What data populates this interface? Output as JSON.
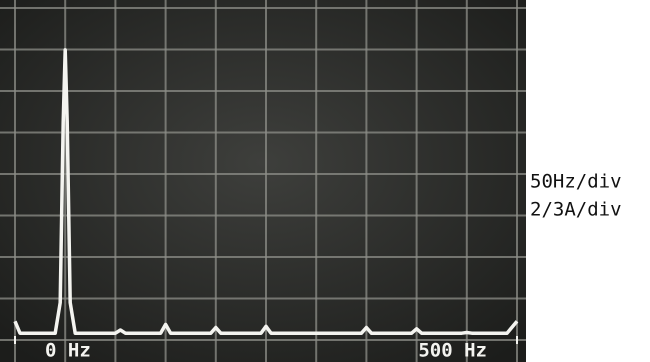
{
  "chart_data": {
    "type": "line",
    "x": [
      0,
      5,
      40,
      45,
      48,
      50,
      52,
      55,
      60,
      100,
      105,
      110,
      145,
      150,
      155,
      195,
      200,
      205,
      245,
      250,
      255,
      345,
      350,
      355,
      395,
      400,
      405,
      445,
      450,
      455,
      490,
      500
    ],
    "values": [
      0.3,
      0.11,
      0.11,
      0.6,
      3.5,
      4.66,
      3.5,
      0.6,
      0.11,
      0.11,
      0.16,
      0.11,
      0.11,
      0.25,
      0.11,
      0.11,
      0.2,
      0.11,
      0.11,
      0.22,
      0.11,
      0.11,
      0.2,
      0.11,
      0.11,
      0.18,
      0.11,
      0.11,
      0.12,
      0.11,
      0.11,
      0.3
    ],
    "color": "#f4f4f0",
    "xlim": [
      0,
      500
    ],
    "ylim": [
      0,
      5.333
    ],
    "xticks": [
      {
        "value": 0,
        "label": "0 Hz"
      },
      {
        "value": 500,
        "label": "500 Hz"
      }
    ],
    "scale_labels": [
      "50Hz/div",
      "2/3A/div"
    ],
    "grid": true
  }
}
